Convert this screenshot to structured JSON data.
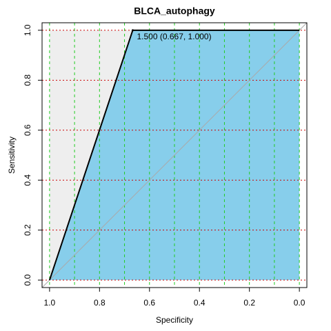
{
  "chart_data": {
    "type": "roc",
    "title": "BLCA_autophagy",
    "x_label": "Specificity",
    "y_label": "Sensitivity",
    "x": [
      1.0,
      0.667,
      0.0
    ],
    "series": [
      {
        "name": "BLCA_autophagy",
        "color": "#000000",
        "fill": "#87ceeb",
        "values": [
          0.0,
          1.0,
          1.0
        ]
      }
    ],
    "threshold_label": "1.500 (0.667, 1.000)",
    "threshold_index": 1,
    "max_auc_fill": "#eeeeee",
    "diagonal_color": "#aaaaaa",
    "xlim": [
      1.03,
      -0.03
    ],
    "ylim": [
      -0.03,
      1.03
    ],
    "xticks": [
      {
        "value": 1.0,
        "label": "1.0"
      },
      {
        "value": 0.8,
        "label": "0.8"
      },
      {
        "value": 0.6,
        "label": "0.6"
      },
      {
        "value": 0.4,
        "label": "0.4"
      },
      {
        "value": 0.2,
        "label": "0.2"
      },
      {
        "value": 0.0,
        "label": "0.0"
      }
    ],
    "yticks": [
      {
        "value": 0.0,
        "label": "0.0"
      },
      {
        "value": 0.2,
        "label": "0.2"
      },
      {
        "value": 0.4,
        "label": "0.4"
      },
      {
        "value": 0.6,
        "label": "0.6"
      },
      {
        "value": 0.8,
        "label": "0.8"
      },
      {
        "value": 1.0,
        "label": "1.0"
      }
    ],
    "xgrid": [
      1.0,
      0.9,
      0.8,
      0.7,
      0.6,
      0.5,
      0.4,
      0.3,
      0.2,
      0.1,
      0.0
    ],
    "xgrid_color": "#22cc22",
    "ygrid": [
      0.0,
      0.2,
      0.4,
      0.6,
      0.8,
      1.0
    ],
    "ygrid_color": "#cc0000"
  }
}
